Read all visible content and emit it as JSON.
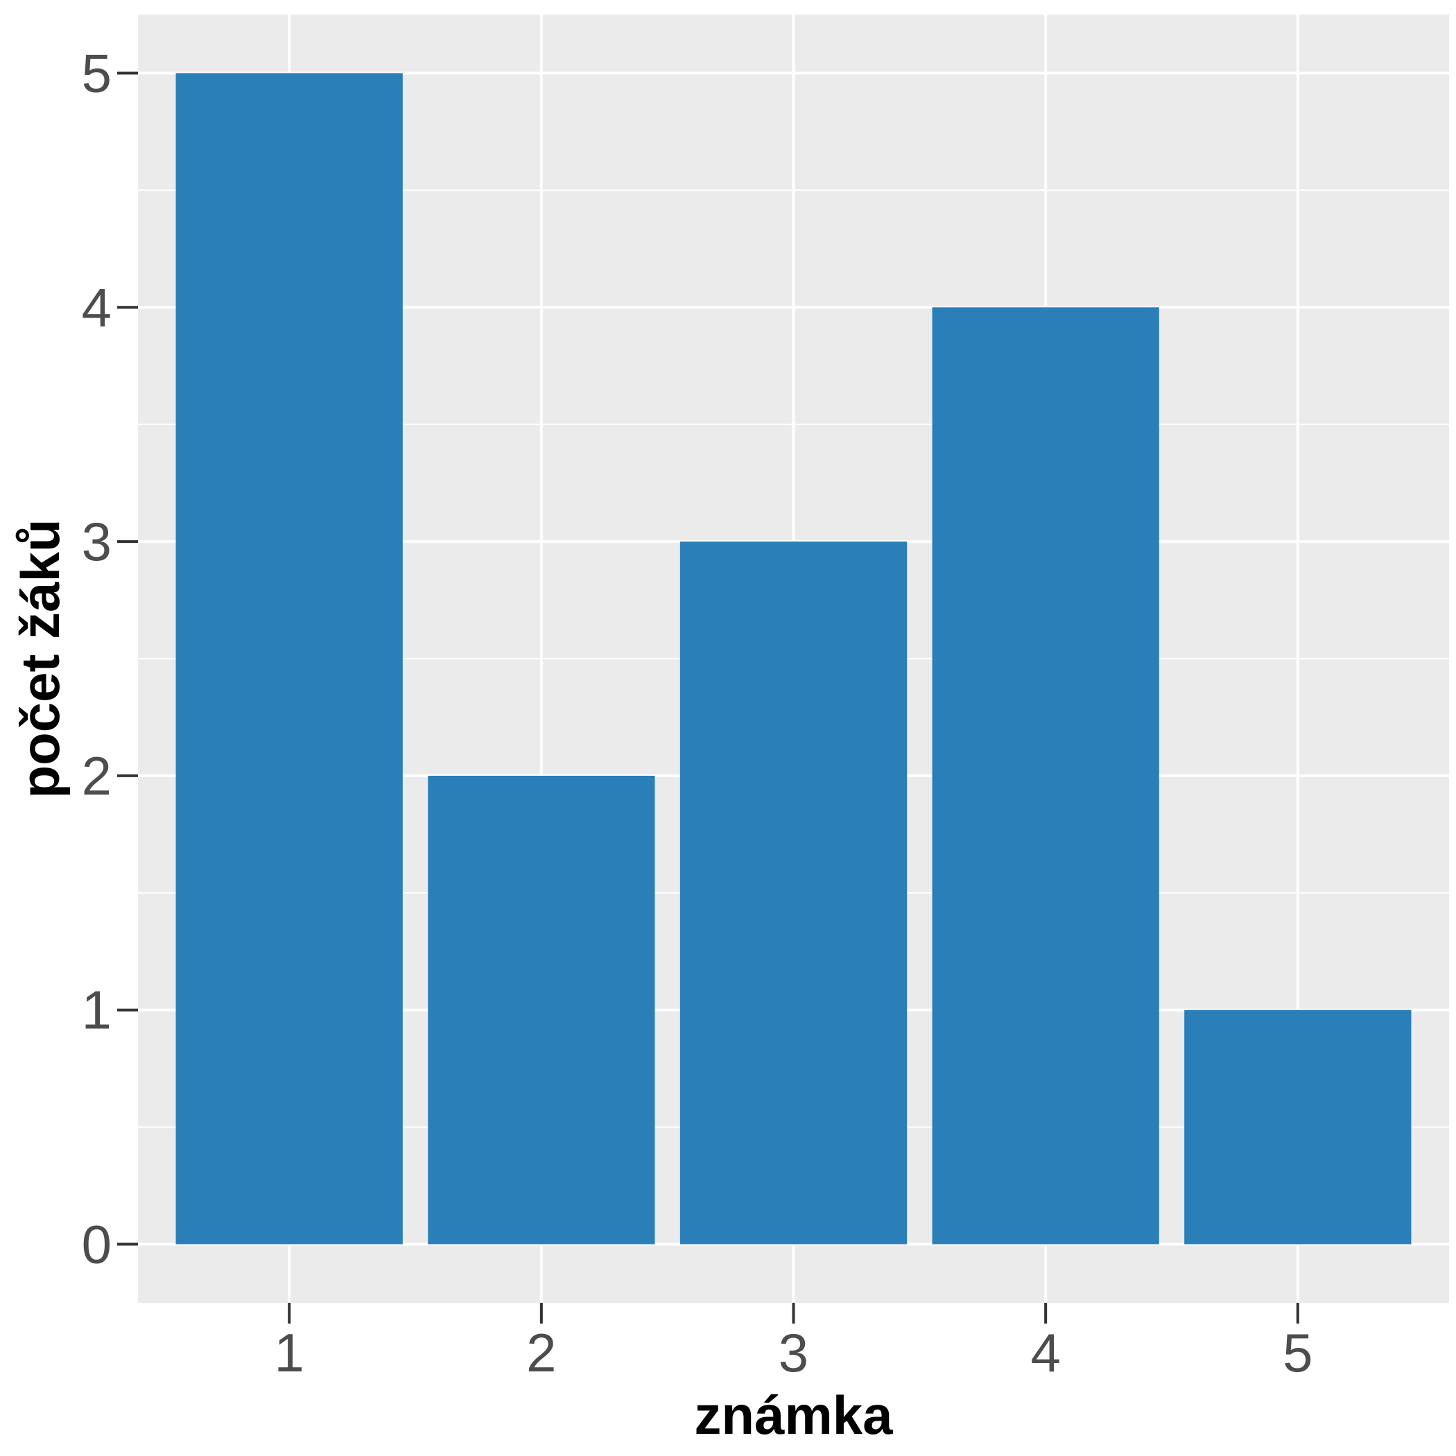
{
  "chart_data": {
    "type": "bar",
    "categories": [
      "1",
      "2",
      "3",
      "4",
      "5"
    ],
    "values": [
      5,
      2,
      3,
      4,
      1
    ],
    "title": "",
    "xlabel": "známka",
    "ylabel": "počet žáků",
    "ylim": [
      -0.25,
      5.25
    ],
    "y_ticks": [
      "0",
      "1",
      "2",
      "3",
      "4",
      "5"
    ],
    "grid": true,
    "legend": "none",
    "colors": {
      "bar": "#2b7fb8",
      "panel_background": "#ebebeb",
      "grid_line": "#ffffff",
      "tick_label": "#4d4d4d",
      "axis_title": "#000000"
    }
  }
}
